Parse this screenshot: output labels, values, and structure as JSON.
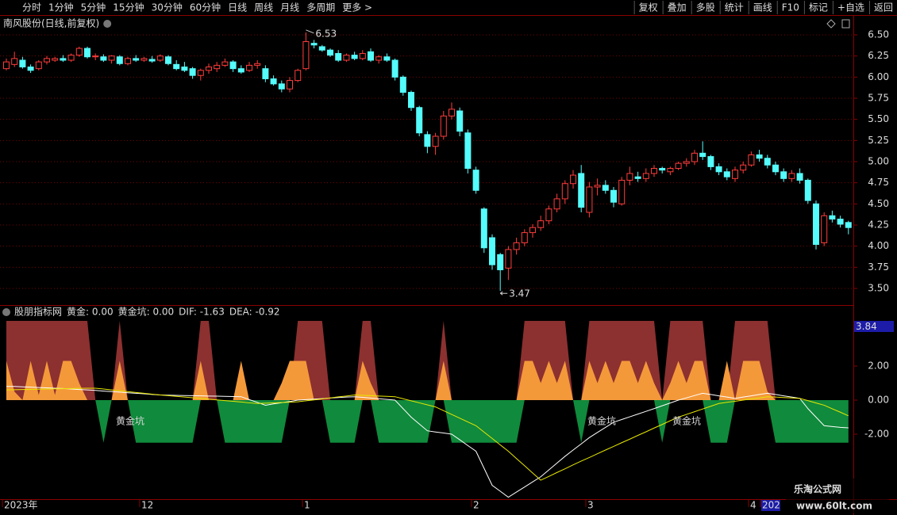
{
  "toolbar_left": [
    "分时",
    "1分钟",
    "5分钟",
    "15分钟",
    "30分钟",
    "60分钟",
    "日线",
    "周线",
    "月线",
    "多周期",
    "更多 >"
  ],
  "toolbar_right": [
    "复权",
    "叠加",
    "多股",
    "统计",
    "画线",
    "F10",
    "标记",
    "+自选",
    "返回"
  ],
  "stock_title": "南风股份(日线,前复权)",
  "indicator_header": [
    "股朋指标网",
    "黄金: 0.00",
    "黄金坑: 0.00",
    "DIF: -1.63",
    "DEA: -0.92"
  ],
  "axis_flag": "3.84",
  "x_labels": [
    "2023年",
    "12",
    "1",
    "2",
    "3",
    "4",
    "202"
  ],
  "watermark": [
    "乐淘公式网",
    "www.60lt.com"
  ],
  "chart_data": [
    {
      "type": "candlestick",
      "up_color": "#ff3c3c",
      "down_color": "#54fcfc",
      "grid": true,
      "ylim": [
        3.3,
        6.63
      ],
      "yticks": [
        {
          "value": 6.5,
          "label": "6.50"
        },
        {
          "value": 6.25,
          "label": "6.25"
        },
        {
          "value": 6.0,
          "label": "6.00"
        },
        {
          "value": 5.75,
          "label": "5.75"
        },
        {
          "value": 5.5,
          "label": "5.50"
        },
        {
          "value": 5.25,
          "label": "5.25"
        },
        {
          "value": 5.0,
          "label": "5.00"
        },
        {
          "value": 4.75,
          "label": "4.75"
        },
        {
          "value": 4.5,
          "label": "4.50"
        },
        {
          "value": 4.25,
          "label": "4.25"
        },
        {
          "value": 4.0,
          "label": "4.00"
        },
        {
          "value": 3.75,
          "label": "3.75"
        },
        {
          "value": 3.5,
          "label": "3.50"
        }
      ],
      "open": [
        6.1,
        6.15,
        6.2,
        6.12,
        6.1,
        6.18,
        6.2,
        6.22,
        6.2,
        6.26,
        6.34,
        6.24,
        6.24,
        6.2,
        6.24,
        6.16,
        6.22,
        6.2,
        6.21,
        6.2,
        6.24,
        6.15,
        6.12,
        6.1,
        6.02,
        6.08,
        6.1,
        6.14,
        6.18,
        6.1,
        6.08,
        6.14,
        6.1,
        5.98,
        5.92,
        5.86,
        5.96,
        6.1,
        6.4,
        6.36,
        6.32,
        6.28,
        6.2,
        6.26,
        6.22,
        6.3,
        6.2,
        6.24,
        6.2,
        6.0,
        5.82,
        5.64,
        5.32,
        5.18,
        5.3,
        5.54,
        5.6,
        5.34,
        4.9,
        4.44,
        4.1,
        3.9,
        3.74,
        3.96,
        4.04,
        4.16,
        4.22,
        4.3,
        4.44,
        4.56,
        4.74,
        4.86,
        4.4,
        4.7,
        4.72,
        4.66,
        4.5,
        4.78,
        4.82,
        4.8,
        4.86,
        4.92,
        4.88,
        4.92,
        4.98,
        5.0,
        5.1,
        5.06,
        4.94,
        4.88,
        4.8,
        4.9,
        4.96,
        5.08,
        5.04,
        4.96,
        4.88,
        4.8,
        4.86,
        4.78,
        4.5,
        4.04,
        4.36,
        4.32,
        4.28
      ],
      "high": [
        6.22,
        6.3,
        6.24,
        6.15,
        6.2,
        6.25,
        6.24,
        6.26,
        6.28,
        6.36,
        6.36,
        6.28,
        6.27,
        6.26,
        6.26,
        6.24,
        6.26,
        6.24,
        6.25,
        6.27,
        6.26,
        6.2,
        6.18,
        6.12,
        6.1,
        6.16,
        6.18,
        6.22,
        6.2,
        6.14,
        6.18,
        6.2,
        6.14,
        6.02,
        5.96,
        6.0,
        6.1,
        6.53,
        6.44,
        6.38,
        6.34,
        6.32,
        6.28,
        6.3,
        6.32,
        6.34,
        6.26,
        6.28,
        6.22,
        6.02,
        5.84,
        5.66,
        5.36,
        5.34,
        5.6,
        5.7,
        5.64,
        5.38,
        4.94,
        4.46,
        4.14,
        3.92,
        4.0,
        4.1,
        4.2,
        4.26,
        4.36,
        4.48,
        4.62,
        4.78,
        4.9,
        4.96,
        4.76,
        4.8,
        4.78,
        4.7,
        4.82,
        4.94,
        4.88,
        4.92,
        4.96,
        4.94,
        4.94,
        5.0,
        5.04,
        5.14,
        5.24,
        5.08,
        4.98,
        4.92,
        4.94,
        5.0,
        5.12,
        5.14,
        5.08,
        5.0,
        4.92,
        4.9,
        4.92,
        4.8,
        4.54,
        4.4,
        4.42,
        4.36,
        4.3
      ],
      "low": [
        6.08,
        6.12,
        6.1,
        6.05,
        6.08,
        6.15,
        6.18,
        6.18,
        6.18,
        6.24,
        6.22,
        6.2,
        6.18,
        6.16,
        6.14,
        6.14,
        6.18,
        6.18,
        6.17,
        6.18,
        6.14,
        6.08,
        6.06,
        5.98,
        5.96,
        6.04,
        6.06,
        6.12,
        6.06,
        6.04,
        6.06,
        6.1,
        5.94,
        5.9,
        5.82,
        5.82,
        5.94,
        6.08,
        6.34,
        6.3,
        6.24,
        6.18,
        6.18,
        6.2,
        6.2,
        6.18,
        6.16,
        6.18,
        5.96,
        5.78,
        5.6,
        5.3,
        5.1,
        5.08,
        5.26,
        5.5,
        5.3,
        4.86,
        4.62,
        3.92,
        3.72,
        3.47,
        3.6,
        3.9,
        4.0,
        4.1,
        4.18,
        4.26,
        4.4,
        4.5,
        4.68,
        4.4,
        4.34,
        4.6,
        4.62,
        4.46,
        4.48,
        4.72,
        4.76,
        4.76,
        4.82,
        4.86,
        4.84,
        4.9,
        4.94,
        4.96,
        5.02,
        4.9,
        4.84,
        4.78,
        4.76,
        4.86,
        4.94,
        5.0,
        4.92,
        4.84,
        4.76,
        4.76,
        4.74,
        4.5,
        3.96,
        4.0,
        4.28,
        4.22,
        4.14
      ],
      "close": [
        6.18,
        6.22,
        6.12,
        6.08,
        6.18,
        6.22,
        6.22,
        6.2,
        6.26,
        6.34,
        6.24,
        6.25,
        6.2,
        6.25,
        6.16,
        6.22,
        6.2,
        6.22,
        6.19,
        6.25,
        6.16,
        6.1,
        6.08,
        6.02,
        6.08,
        6.12,
        6.14,
        6.18,
        6.1,
        6.06,
        6.14,
        6.16,
        5.98,
        5.92,
        5.86,
        5.96,
        6.08,
        6.42,
        6.38,
        6.32,
        6.26,
        6.2,
        6.26,
        6.22,
        6.28,
        6.2,
        6.24,
        6.2,
        6.0,
        5.82,
        5.64,
        5.34,
        5.18,
        5.3,
        5.54,
        5.62,
        5.36,
        4.92,
        4.66,
        3.98,
        3.78,
        3.72,
        3.96,
        4.04,
        4.16,
        4.22,
        4.3,
        4.44,
        4.56,
        4.74,
        4.84,
        4.46,
        4.7,
        4.72,
        4.66,
        4.52,
        4.78,
        4.86,
        4.8,
        4.86,
        4.92,
        4.9,
        4.92,
        4.98,
        5.0,
        5.1,
        5.06,
        4.94,
        4.88,
        4.82,
        4.9,
        4.96,
        5.08,
        5.04,
        4.96,
        4.88,
        4.8,
        4.86,
        4.78,
        4.54,
        4.02,
        4.36,
        4.32,
        4.26,
        4.22
      ]
    },
    {
      "type": "indicator",
      "ylim": [
        -5.8,
        4.9
      ],
      "yticks": [
        {
          "value": 2,
          "label": "2.00"
        },
        {
          "value": 0,
          "label": "0.00"
        },
        {
          "value": -2,
          "label": "-2.00"
        }
      ],
      "annotations": [
        "黄金坑",
        "黄金坑",
        "黄金坑"
      ],
      "series": [
        {
          "style": "area",
          "color": "#8c3030",
          "values": [
            4.65,
            4.65,
            4.65,
            4.65,
            4.65,
            4.65,
            4.65,
            4.65,
            4.65,
            4.65,
            4.65,
            0,
            0,
            0,
            4.65,
            0,
            0,
            0,
            0,
            0,
            0,
            0,
            0,
            0,
            4.65,
            4.65,
            0,
            0,
            0,
            0,
            0,
            0,
            0,
            0,
            0,
            0,
            4.65,
            4.65,
            4.65,
            4.65,
            0,
            0,
            0,
            0,
            4.65,
            4.65,
            0,
            0,
            0,
            0,
            0,
            0,
            0,
            0,
            4.65,
            0,
            0,
            0,
            0,
            0,
            0,
            0,
            0,
            0,
            4.65,
            4.65,
            4.65,
            4.65,
            4.65,
            4.65,
            0,
            0,
            4.65,
            4.65,
            4.65,
            4.65,
            4.65,
            4.65,
            4.65,
            4.65,
            4.65,
            0,
            4.65,
            4.65,
            4.65,
            4.65,
            4.65,
            0,
            0,
            0,
            4.65,
            4.65,
            4.65,
            4.65,
            4.65,
            0,
            0,
            0,
            0,
            0,
            0,
            0,
            0,
            0,
            0
          ]
        },
        {
          "style": "area",
          "color": "#f4993a",
          "values": [
            2.3,
            0.5,
            0,
            2.3,
            0.3,
            2.3,
            0.3,
            2.3,
            2.3,
            1.0,
            0,
            0,
            0,
            0,
            2.3,
            0,
            0,
            0,
            0,
            0,
            0,
            0,
            0,
            0,
            2.3,
            0,
            0,
            0,
            0,
            2.3,
            0,
            0,
            0,
            0,
            1.0,
            2.3,
            2.3,
            2.3,
            0,
            0,
            0,
            0,
            0,
            0,
            2.3,
            1.0,
            0,
            0,
            0,
            0,
            0,
            0,
            0,
            0,
            2.3,
            0,
            0,
            0,
            0,
            0,
            0,
            0,
            0,
            0,
            2.3,
            2.3,
            1.0,
            2.3,
            1.0,
            2.3,
            0,
            0,
            2.3,
            1.0,
            2.3,
            1.0,
            2.3,
            2.3,
            1.0,
            2.3,
            1.0,
            0,
            1.0,
            2.3,
            1.0,
            2.3,
            2.3,
            0,
            0,
            2.3,
            0,
            2.3,
            2.3,
            2.3,
            0.5,
            0,
            0,
            0,
            0,
            0,
            0,
            0,
            0,
            0,
            0
          ]
        },
        {
          "style": "area",
          "color": "#108a3c",
          "values": [
            0,
            0,
            0,
            0,
            0,
            0,
            0,
            0,
            0,
            0,
            0,
            0,
            -2.5,
            0,
            0,
            0,
            -2.5,
            -2.5,
            -2.5,
            -2.5,
            -2.5,
            -2.5,
            -2.5,
            -2.5,
            0,
            0,
            0,
            -2.5,
            -2.5,
            -2.5,
            -2.5,
            -2.5,
            -2.5,
            -2.5,
            -2.5,
            0,
            0,
            0,
            0,
            0,
            -2.5,
            -2.5,
            -2.5,
            -2.5,
            0,
            0,
            -2.5,
            -2.5,
            -2.5,
            -2.5,
            -2.5,
            -2.5,
            -2.5,
            0,
            0,
            -2.5,
            -2.5,
            -2.5,
            -2.5,
            -2.5,
            -2.5,
            -2.5,
            -2.5,
            -2.5,
            0,
            0,
            0,
            0,
            0,
            0,
            0,
            -2.5,
            0,
            0,
            0,
            0,
            0,
            0,
            0,
            0,
            0,
            -2.5,
            0,
            0,
            0,
            0,
            0,
            -2.5,
            -2.5,
            -2.5,
            0,
            0,
            0,
            0,
            0,
            -2.5,
            -2.5,
            -2.5,
            -2.5,
            -2.5,
            -2.5,
            -2.5,
            -2.5,
            -2.5,
            -2.5
          ]
        },
        {
          "style": "line",
          "color": "#ffffff",
          "values": [
            0.8,
            0.8,
            0.78,
            0.76,
            0.74,
            0.72,
            0.7,
            0.68,
            0.65,
            0.62,
            0.6,
            0.57,
            0.53,
            0.5,
            0.47,
            0.43,
            0.4,
            0.37,
            0.33,
            0.3,
            0.29,
            0.28,
            0.27,
            0.26,
            0.25,
            0.24,
            0.23,
            0.22,
            0.21,
            0.2,
            0.03,
            -0.13,
            -0.3,
            -0.22,
            -0.15,
            -0.08,
            0,
            0.03,
            0.06,
            0.09,
            0.12,
            0.15,
            0.18,
            0.2,
            0.16,
            0.12,
            0.08,
            0.04,
            0,
            -0.5,
            -1.0,
            -1.4,
            -1.8,
            -1.87,
            -1.93,
            -2.0,
            -2.33,
            -2.67,
            -3.0,
            -4.0,
            -5.0,
            -5.35,
            -5.7,
            -5.4,
            -5.1,
            -4.8,
            -4.5,
            -4.1,
            -3.7,
            -3.3,
            -2.93,
            -2.57,
            -2.2,
            -1.9,
            -1.6,
            -1.3,
            -1.14,
            -0.98,
            -0.82,
            -0.66,
            -0.5,
            -0.33,
            -0.17,
            0,
            0.13,
            0.27,
            0.4,
            0.33,
            0.25,
            0.18,
            0.1,
            0.18,
            0.25,
            0.33,
            0.4,
            0.33,
            0.25,
            0.18,
            0.1,
            -0.5,
            -1.0,
            -1.5,
            -1.55,
            -1.6,
            -1.63
          ]
        },
        {
          "style": "line",
          "color": "#e8e800",
          "values": [
            0.6,
            0.61,
            0.62,
            0.63,
            0.64,
            0.65,
            0.66,
            0.67,
            0.68,
            0.69,
            0.7,
            0.7,
            0.65,
            0.6,
            0.55,
            0.5,
            0.45,
            0.4,
            0.35,
            0.3,
            0.26,
            0.22,
            0.18,
            0.14,
            0.1,
            0.06,
            0.01,
            -0.03,
            -0.07,
            -0.11,
            -0.16,
            -0.2,
            -0.18,
            -0.16,
            -0.14,
            -0.12,
            -0.1,
            -0.04,
            0.01,
            0.07,
            0.13,
            0.19,
            0.24,
            0.3,
            0.28,
            0.26,
            0.24,
            0.22,
            0.2,
            0.08,
            -0.04,
            -0.16,
            -0.28,
            -0.4,
            -0.62,
            -0.84,
            -1.06,
            -1.28,
            -1.5,
            -1.88,
            -2.25,
            -2.63,
            -3.0,
            -3.43,
            -3.85,
            -4.28,
            -4.7,
            -4.48,
            -4.25,
            -4.03,
            -3.8,
            -3.58,
            -3.37,
            -3.15,
            -2.93,
            -2.72,
            -2.5,
            -2.29,
            -2.07,
            -1.86,
            -1.64,
            -1.43,
            -1.21,
            -1.0,
            -0.84,
            -0.68,
            -0.52,
            -0.36,
            -0.2,
            -0.13,
            -0.07,
            0,
            0.07,
            0.13,
            0.2,
            0.18,
            0.15,
            0.13,
            0.1,
            -0.03,
            -0.17,
            -0.3,
            -0.51,
            -0.71,
            -0.92
          ]
        }
      ]
    }
  ]
}
